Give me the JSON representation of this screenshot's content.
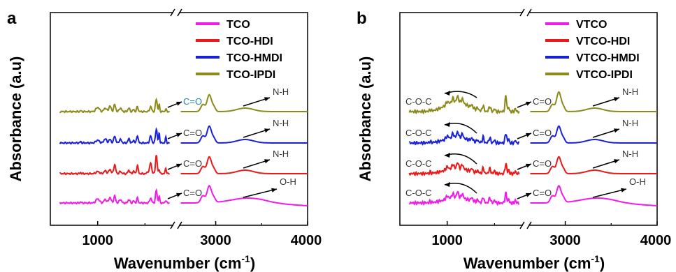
{
  "chart_data": [
    {
      "type": "line",
      "panel_label": "a",
      "xlabel": "Wavenumber (cm",
      "xlabel_sup": "-1",
      "xlabel_close": ")",
      "ylabel": "Absorbance (a.u)",
      "x_break": [
        1800,
        2600
      ],
      "xlim": [
        500,
        4000
      ],
      "xticks": [
        {
          "value": 1000,
          "label": "1000"
        },
        {
          "value": 3000,
          "label": "3000"
        },
        {
          "value": 4000,
          "label": "4000"
        }
      ],
      "legend_position": "top-right",
      "series": [
        {
          "name": "TCO-IPDI",
          "color": "#8c8a1a",
          "baseline": 1.6,
          "mid": "low",
          "oh": false
        },
        {
          "name": "TCO-HMDI",
          "color": "#1a22d8",
          "baseline": 1.05,
          "mid": "mid",
          "oh": false
        },
        {
          "name": "TCO-HDI",
          "color": "#e81a1a",
          "baseline": 0.5,
          "mid": "high",
          "oh": false
        },
        {
          "name": "TCO",
          "color": "#f01aea",
          "baseline": 0.0,
          "mid": "low",
          "oh": true
        }
      ],
      "annotations": [
        {
          "text": "C=O",
          "color": "#1a8aa0",
          "row": 0,
          "side": "co"
        },
        {
          "text": "N-H",
          "color": "#333333",
          "row": 0,
          "side": "tail"
        },
        {
          "text": "C=O",
          "color": "#333333",
          "row": 1,
          "side": "co"
        },
        {
          "text": "N-H",
          "color": "#333333",
          "row": 1,
          "side": "tail"
        },
        {
          "text": "C=O",
          "color": "#333333",
          "row": 2,
          "side": "co"
        },
        {
          "text": "N-H",
          "color": "#333333",
          "row": 2,
          "side": "tail"
        },
        {
          "text": "C=O",
          "color": "#333333",
          "row": 3,
          "side": "co"
        },
        {
          "text": "O-H",
          "color": "#333333",
          "row": 3,
          "side": "tail"
        }
      ],
      "legend_order": [
        "TCO",
        "TCO-HDI",
        "TCO-HMDI",
        "TCO-IPDI"
      ]
    },
    {
      "type": "line",
      "panel_label": "b",
      "xlabel": "Wavenumber (cm",
      "xlabel_sup": "-1",
      "xlabel_close": ")",
      "ylabel": "Absorbance (a.u)",
      "x_break": [
        1800,
        2600
      ],
      "xlim": [
        500,
        4000
      ],
      "xticks": [
        {
          "value": 1000,
          "label": "1000"
        },
        {
          "value": 3000,
          "label": "3000"
        },
        {
          "value": 4000,
          "label": "4000"
        }
      ],
      "legend_position": "top-right",
      "series": [
        {
          "name": "VTCO-IPDI",
          "color": "#8c8a1a",
          "baseline": 1.6,
          "mid": "high",
          "oh": false
        },
        {
          "name": "VTCO-HMDI",
          "color": "#1a22d8",
          "baseline": 1.05,
          "mid": "mid",
          "oh": false
        },
        {
          "name": "VTCO-HDI",
          "color": "#e81a1a",
          "baseline": 0.5,
          "mid": "mid",
          "oh": false
        },
        {
          "name": "VTCO",
          "color": "#f01aea",
          "baseline": 0.0,
          "mid": "mid",
          "oh": true
        }
      ],
      "annotations": [
        {
          "text": "C-O-C",
          "color": "#333333",
          "row": 0,
          "side": "coc"
        },
        {
          "text": "C=O",
          "color": "#333333",
          "row": 0,
          "side": "co"
        },
        {
          "text": "N-H",
          "color": "#333333",
          "row": 0,
          "side": "tail"
        },
        {
          "text": "C-O-C",
          "color": "#333333",
          "row": 1,
          "side": "coc"
        },
        {
          "text": "C=O",
          "color": "#333333",
          "row": 1,
          "side": "co"
        },
        {
          "text": "N-H",
          "color": "#333333",
          "row": 1,
          "side": "tail"
        },
        {
          "text": "C-O-C",
          "color": "#333333",
          "row": 2,
          "side": "coc"
        },
        {
          "text": "C=O",
          "color": "#333333",
          "row": 2,
          "side": "co"
        },
        {
          "text": "N-H",
          "color": "#333333",
          "row": 2,
          "side": "tail"
        },
        {
          "text": "C-O-C",
          "color": "#333333",
          "row": 3,
          "side": "coc"
        },
        {
          "text": "C=O",
          "color": "#333333",
          "row": 3,
          "side": "co"
        },
        {
          "text": "O-H",
          "color": "#333333",
          "row": 3,
          "side": "tail"
        }
      ],
      "legend_order": [
        "VTCO",
        "VTCO-HDI",
        "VTCO-HMDI",
        "VTCO-IPDI"
      ]
    }
  ]
}
